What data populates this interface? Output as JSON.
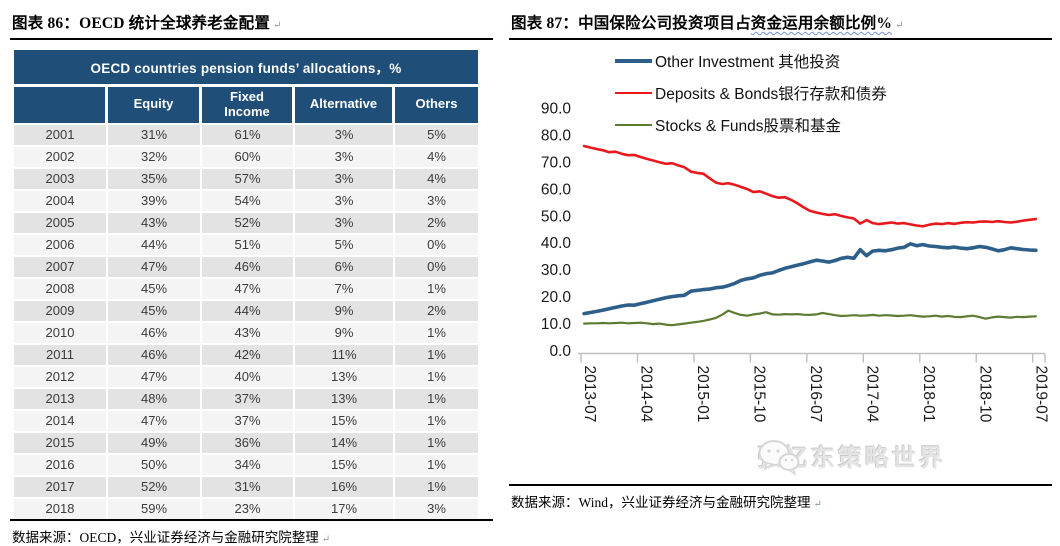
{
  "return_mark": "↵",
  "left_panel": {
    "title": "图表 86：OECD 统计全球养老金配置",
    "table": {
      "title": "OECD countries pension funds’ allocations，%",
      "columns": [
        "",
        "Equity",
        "Fixed Income",
        "Alternative",
        "Others"
      ],
      "rows": [
        [
          "2001",
          "31%",
          "61%",
          "3%",
          "5%"
        ],
        [
          "2002",
          "32%",
          "60%",
          "3%",
          "4%"
        ],
        [
          "2003",
          "35%",
          "57%",
          "3%",
          "4%"
        ],
        [
          "2004",
          "39%",
          "54%",
          "3%",
          "3%"
        ],
        [
          "2005",
          "43%",
          "52%",
          "3%",
          "2%"
        ],
        [
          "2006",
          "44%",
          "51%",
          "5%",
          "0%"
        ],
        [
          "2007",
          "47%",
          "46%",
          "6%",
          "0%"
        ],
        [
          "2008",
          "45%",
          "47%",
          "7%",
          "1%"
        ],
        [
          "2009",
          "45%",
          "44%",
          "9%",
          "2%"
        ],
        [
          "2010",
          "46%",
          "43%",
          "9%",
          "1%"
        ],
        [
          "2011",
          "46%",
          "42%",
          "11%",
          "1%"
        ],
        [
          "2012",
          "47%",
          "40%",
          "13%",
          "1%"
        ],
        [
          "2013",
          "48%",
          "37%",
          "13%",
          "1%"
        ],
        [
          "2014",
          "47%",
          "37%",
          "15%",
          "1%"
        ],
        [
          "2015",
          "49%",
          "36%",
          "14%",
          "1%"
        ],
        [
          "2016",
          "50%",
          "34%",
          "15%",
          "1%"
        ],
        [
          "2017",
          "52%",
          "31%",
          "16%",
          "1%"
        ],
        [
          "2018",
          "59%",
          "23%",
          "17%",
          "3%"
        ]
      ],
      "header_bg": "#1F4E79"
    },
    "source": "数据来源：OECD，兴业证券经济与金融研究院整理"
  },
  "right_panel": {
    "title_part1": "图表 87：中国保险公司投资项目占",
    "title_part2": "资金运用余额比例%",
    "source": "数据来源：Wind，兴业证券经济与金融研究院整理",
    "watermark": "张忆东策略世界"
  },
  "chart_data": {
    "type": "line",
    "title": "",
    "xlabel": "",
    "ylabel": "",
    "ylim": [
      0,
      90
    ],
    "y_tick_labels": [
      "0.0",
      "10.0",
      "20.0",
      "30.0",
      "40.0",
      "50.0",
      "60.0",
      "70.0",
      "80.0",
      "90.0"
    ],
    "x_tick_labels": [
      "2013-07",
      "2014-04",
      "2015-01",
      "2015-10",
      "2016-07",
      "2017-04",
      "2018-01",
      "2018-10",
      "2019-07"
    ],
    "x_tick_interval_months": 9,
    "n_points": 73,
    "grid": false,
    "legend_position": "top",
    "series": [
      {
        "name": "Other Investment 其他投资",
        "color": "#2E5F8A",
        "stroke_width": 3.6,
        "values": [
          13.7,
          14.1,
          14.5,
          15.0,
          15.5,
          16.0,
          16.5,
          16.9,
          16.8,
          17.4,
          17.9,
          18.5,
          19.0,
          19.6,
          20.0,
          20.3,
          20.5,
          22.0,
          22.3,
          22.6,
          22.8,
          23.3,
          23.5,
          24.1,
          24.9,
          26.0,
          26.6,
          27.0,
          27.9,
          28.5,
          28.8,
          29.7,
          30.5,
          31.1,
          31.7,
          32.2,
          32.9,
          33.5,
          33.2,
          32.8,
          33.4,
          34.2,
          34.6,
          34.2,
          37.4,
          35.2,
          36.9,
          37.2,
          37.0,
          37.4,
          38.0,
          38.3,
          39.6,
          38.9,
          39.3,
          38.8,
          38.6,
          38.3,
          38.1,
          38.4,
          38.0,
          37.8,
          38.1,
          38.6,
          38.3,
          37.7,
          37.0,
          37.4,
          38.1,
          37.8,
          37.5,
          37.3,
          37.2
        ]
      },
      {
        "name": "Deposits & Bonds银行存款和债券",
        "color": "#E8191C",
        "stroke_width": 2.6,
        "values": [
          75.9,
          75.3,
          74.8,
          74.3,
          73.6,
          73.8,
          73.0,
          72.5,
          72.6,
          71.8,
          71.1,
          70.5,
          69.9,
          69.3,
          69.5,
          68.7,
          68.0,
          66.4,
          65.9,
          65.6,
          63.9,
          62.3,
          61.8,
          62.1,
          61.5,
          60.7,
          59.9,
          58.8,
          59.1,
          58.2,
          57.3,
          56.7,
          56.9,
          55.9,
          54.6,
          53.1,
          51.8,
          51.2,
          50.7,
          50.3,
          50.6,
          49.9,
          49.4,
          49.0,
          47.1,
          48.4,
          47.3,
          46.9,
          47.2,
          47.5,
          47.1,
          47.3,
          46.8,
          46.4,
          46.1,
          46.7,
          47.1,
          46.9,
          47.3,
          47.0,
          47.4,
          47.6,
          47.5,
          47.8,
          47.9,
          47.7,
          48.0,
          47.7,
          47.5,
          47.8,
          48.2,
          48.5,
          48.8
        ]
      },
      {
        "name": "Stocks & Funds股票和基金",
        "color": "#5D7B33",
        "stroke_width": 2.2,
        "values": [
          10.0,
          10.1,
          10.1,
          10.2,
          10.1,
          10.2,
          10.3,
          10.1,
          10.2,
          10.3,
          10.1,
          9.8,
          10.0,
          9.6,
          9.4,
          9.7,
          10.0,
          10.3,
          10.6,
          11.0,
          11.5,
          12.1,
          13.3,
          14.8,
          13.9,
          13.2,
          12.9,
          13.4,
          13.7,
          14.2,
          13.4,
          13.3,
          13.5,
          13.4,
          13.5,
          13.3,
          13.2,
          13.4,
          13.9,
          13.5,
          13.1,
          12.8,
          12.9,
          13.1,
          12.9,
          13.0,
          13.2,
          12.9,
          13.1,
          13.0,
          12.8,
          12.9,
          13.1,
          12.8,
          12.6,
          12.7,
          12.9,
          12.6,
          12.8,
          12.5,
          12.4,
          12.7,
          12.9,
          12.4,
          11.8,
          12.3,
          12.6,
          12.4,
          12.2,
          12.5,
          12.4,
          12.6,
          12.7
        ]
      }
    ],
    "axis_color": "#BFBFBF",
    "tick_label_color": "#1a1a1a"
  }
}
